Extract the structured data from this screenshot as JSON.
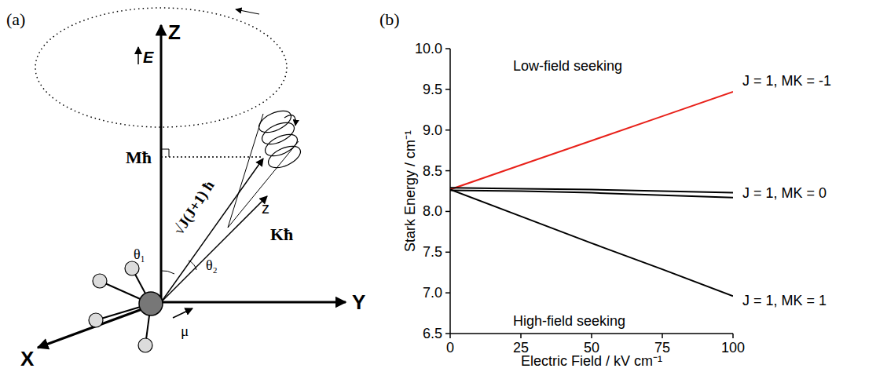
{
  "panels": {
    "a": "(a)",
    "b": "(b)"
  },
  "diagram": {
    "labels": [
      "Z",
      "Y",
      "X",
      "E",
      "Mħ",
      "√J(J+1) ħ",
      "Kħ",
      "z",
      "θ₁",
      "θ₂",
      "μ"
    ]
  },
  "chart_data": {
    "type": "line",
    "x_label": "Electric Field / kV cm⁻¹",
    "y_label": "Stark Energy / cm⁻¹",
    "annotations": [
      "Low-field seeking",
      "High-field seeking"
    ],
    "x": [
      0,
      25,
      50,
      75,
      100
    ],
    "series": [
      {
        "name": "J = 1, MK = -1",
        "color": "#e8211a",
        "values": [
          8.27,
          8.57,
          8.87,
          9.17,
          9.47
        ]
      },
      {
        "name": "J = 1, MK = 1",
        "color": "#000000",
        "values": [
          8.27,
          7.94,
          7.61,
          7.29,
          6.96
        ]
      },
      {
        "name": "J = 1, MK = 0",
        "color": "#000000",
        "values": [
          8.29,
          8.28,
          8.27,
          8.25,
          8.23
        ]
      },
      {
        "color": "#000000",
        "values": [
          8.26,
          8.25,
          8.23,
          8.2,
          8.17
        ]
      }
    ],
    "xlim": [
      0,
      100
    ],
    "xticks": [
      0,
      25,
      50,
      75,
      100
    ],
    "ylim": [
      6.5,
      10
    ],
    "yticks": [
      6.5,
      {
        "value": 7,
        "label": "7.0"
      },
      7.5,
      {
        "value": 8,
        "label": "8.0"
      },
      8.5,
      {
        "value": 9,
        "label": "9.0"
      },
      9.5,
      {
        "value": 10,
        "label": "10.0"
      }
    ]
  }
}
